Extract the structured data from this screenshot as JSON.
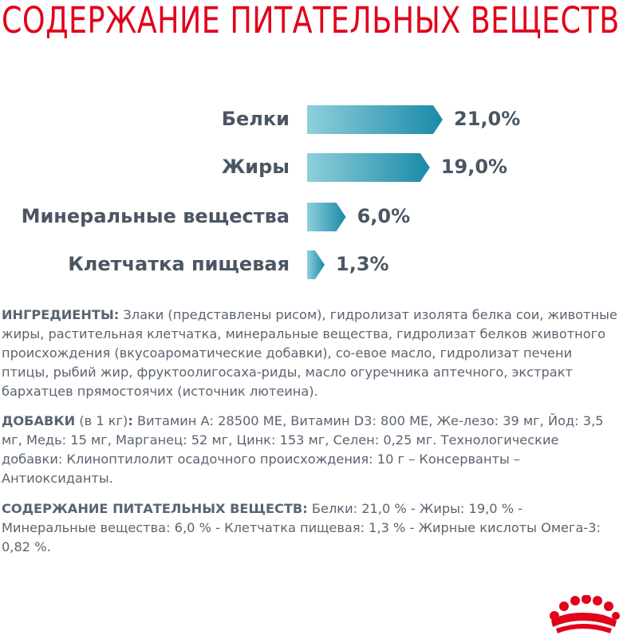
{
  "title": "СОДЕРЖАНИЕ ПИТАТЕЛЬНЫХ ВЕЩЕСТВ",
  "colors": {
    "title": "#e2001a",
    "bar_light": "#8fcfdc",
    "bar_dark": "#1a8aa8",
    "text": "#4a5663"
  },
  "chart_data": {
    "type": "bar",
    "categories": [
      "Белки",
      "Жиры",
      "Минеральные вещества",
      "Клетчатка пищевая"
    ],
    "values": [
      21.0,
      19.0,
      6.0,
      1.3
    ],
    "value_labels": [
      "21,0%",
      "19,0%",
      "6,0%",
      "1,3%"
    ],
    "unit": "%"
  },
  "ingredients": {
    "heading": "ИНГРЕДИЕНТЫ:",
    "text": " Злаки (представлены рисом), гидролизат изолята белка сои, животные жиры, растительная клетчатка, минеральные вещества, гидролизат белков животного происхождения (вкусоароматические добавки), со-евое масло, гидролизат печени птицы, рыбий жир, фруктоолигосаха-риды, масло огуречника аптечного, экстракт бархатцев прямостоячих (источник лютеина)."
  },
  "additives": {
    "heading": "ДОБАВКИ",
    "subheading": " (в 1 кг)",
    "colon": ":",
    "text": " Витамин А: 28500 МЕ, Витамин D3: 800 МЕ, Же-лезо: 39 мг, Йод: 3,5 мг, Медь: 15 мг, Марганец: 52 мг, Цинк: 153  мг, Селен: 0,25 мг. Технологические добавки: Клиноптилолит осадочного происхождения: 10 г – Консерванты – Антиоксиданты."
  },
  "nutrients": {
    "heading": "СОДЕРЖАНИЕ ПИТАТЕЛЬНЫХ ВЕЩЕСТВ:",
    "text": " Белки: 21,0 % - Жиры: 19,0 % - Минеральные вещества: 6,0 %  - Клетчатка пищевая: 1,3 % - Жирные кислоты Омега-3: 0,82 %."
  },
  "logo": {
    "icon": "crown-icon"
  }
}
